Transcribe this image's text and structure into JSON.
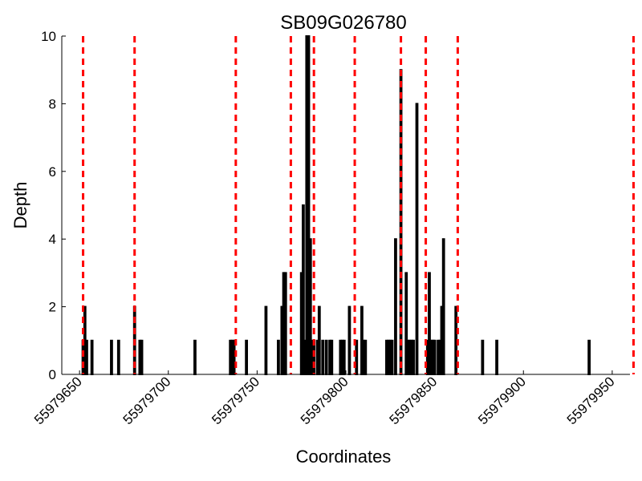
{
  "chart_data": {
    "type": "bar",
    "title": "SB09G026780",
    "xlabel": "Coordinates",
    "ylabel": "Depth",
    "xlim": [
      55979640,
      55979960
    ],
    "ylim": [
      0,
      10
    ],
    "x_ticks": [
      55979650,
      55979700,
      55979750,
      55979800,
      55979850,
      55979900,
      55979950
    ],
    "y_ticks": [
      0,
      2,
      4,
      6,
      8,
      10
    ],
    "grid": false,
    "legend": "none",
    "bar_color": "#ffffff",
    "bar_edge_color": "#000000",
    "vline_color": "#ff0000",
    "bars": {
      "x": [
        55979652,
        55979653,
        55979654,
        55979657,
        55979668,
        55979672,
        55979681,
        55979684,
        55979685,
        55979715,
        55979735,
        55979736,
        55979737,
        55979744,
        55979755,
        55979762,
        55979764,
        55979765,
        55979766,
        55979775,
        55979776,
        55979777,
        55979778,
        55979779,
        55979780,
        55979781,
        55979782,
        55979784,
        55979785,
        55979787,
        55979789,
        55979791,
        55979792,
        55979797,
        55979798,
        55979799,
        55979802,
        55979806,
        55979809,
        55979810,
        55979811,
        55979823,
        55979824,
        55979825,
        55979826,
        55979828,
        55979831,
        55979834,
        55979835,
        55979836,
        55979837,
        55979838,
        55979840,
        55979846,
        55979847,
        55979848,
        55979849,
        55979850,
        55979852,
        55979853,
        55979854,
        55979855,
        55979862,
        55979877,
        55979885,
        55979937
      ],
      "values": [
        1,
        2,
        1,
        1,
        1,
        1,
        2,
        1,
        1,
        1,
        1,
        1,
        1,
        1,
        2,
        1,
        2,
        3,
        3,
        3,
        5,
        1,
        10,
        10,
        4,
        1,
        1,
        1,
        2,
        1,
        1,
        1,
        1,
        1,
        1,
        1,
        2,
        1,
        2,
        1,
        1,
        1,
        1,
        1,
        1,
        4,
        9,
        3,
        1,
        1,
        1,
        1,
        8,
        1,
        3,
        1,
        1,
        1,
        1,
        1,
        2,
        4,
        2,
        1,
        1,
        1
      ]
    },
    "vlines": [
      55979652,
      55979681,
      55979738,
      55979769,
      55979782,
      55979805,
      55979831,
      55979845,
      55979863,
      55979962
    ]
  }
}
